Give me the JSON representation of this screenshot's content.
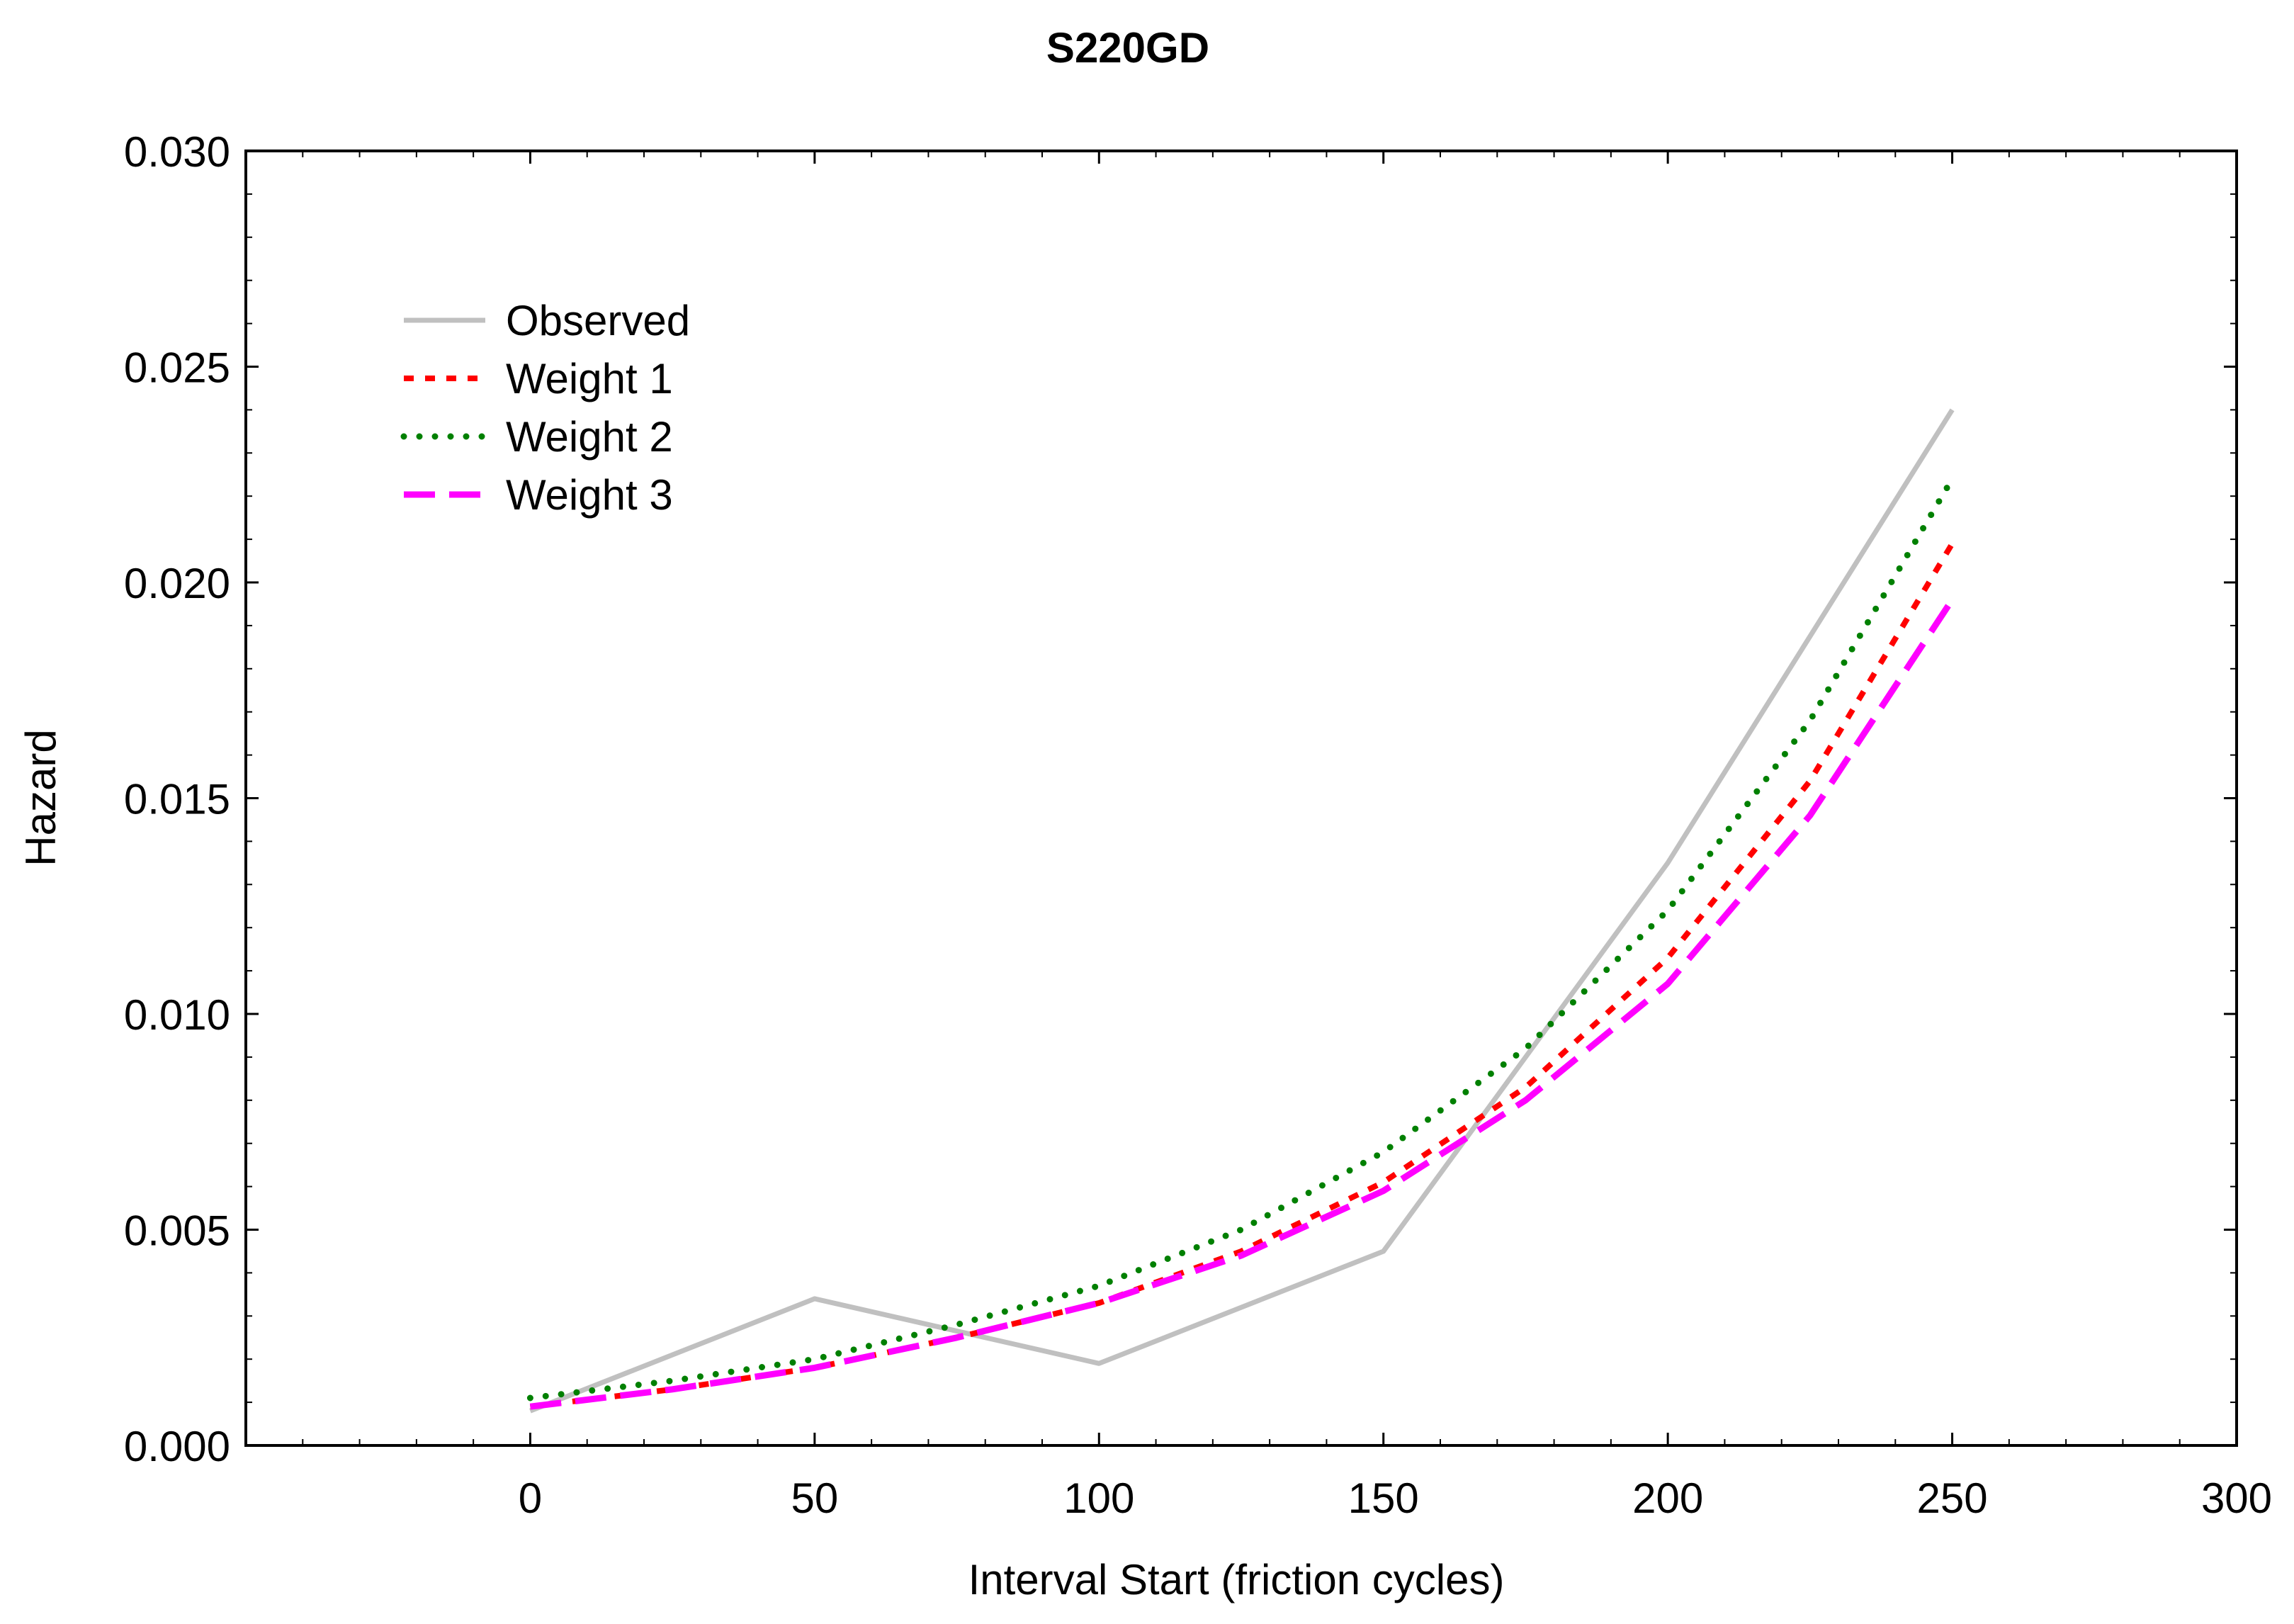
{
  "chart_data": {
    "type": "line",
    "title": "S220GD",
    "xlabel": "Interval Start (friction cycles)",
    "ylabel": "Hazard",
    "xlim": [
      -50,
      300
    ],
    "ylim": [
      0,
      0.03
    ],
    "xticks": [
      0,
      50,
      100,
      150,
      200,
      250,
      300
    ],
    "xtick_labels": [
      "0",
      "50",
      "100",
      "150",
      "200",
      "250",
      "300"
    ],
    "yticks": [
      0,
      0.005,
      0.01,
      0.015,
      0.02,
      0.025,
      0.03
    ],
    "ytick_labels": [
      "0.000",
      "0.005",
      "0.010",
      "0.015",
      "0.020",
      "0.025",
      "0.030"
    ],
    "grid": false,
    "legend_position": "top-left",
    "series": [
      {
        "name": "Observed",
        "color": "#c0c0c0",
        "style": "solid",
        "x": [
          0,
          50,
          100,
          150,
          200,
          250
        ],
        "y": [
          0.0008,
          0.0034,
          0.0019,
          0.0045,
          0.0135,
          0.024
        ]
      },
      {
        "name": "Weight 1",
        "color": "#ff0000",
        "style": "short-dash",
        "x": [
          0,
          25,
          50,
          75,
          100,
          125,
          150,
          175,
          200,
          225,
          250
        ],
        "y": [
          0.0009,
          0.0013,
          0.0018,
          0.0025,
          0.0033,
          0.0045,
          0.0061,
          0.0083,
          0.0113,
          0.0154,
          0.0209
        ]
      },
      {
        "name": "Weight 2",
        "color": "#008000",
        "style": "dotted",
        "x": [
          0,
          25,
          50,
          75,
          100,
          125,
          150,
          175,
          200,
          225,
          250
        ],
        "y": [
          0.0011,
          0.0015,
          0.002,
          0.0028,
          0.0037,
          0.005,
          0.0068,
          0.0092,
          0.0124,
          0.0168,
          0.0224
        ]
      },
      {
        "name": "Weight 3",
        "color": "#ff00ff",
        "style": "long-dash",
        "x": [
          0,
          25,
          50,
          75,
          100,
          125,
          150,
          175,
          200,
          225,
          250
        ],
        "y": [
          0.0009,
          0.0013,
          0.0018,
          0.0025,
          0.0033,
          0.0044,
          0.0059,
          0.008,
          0.0107,
          0.0146,
          0.0196
        ]
      }
    ]
  }
}
